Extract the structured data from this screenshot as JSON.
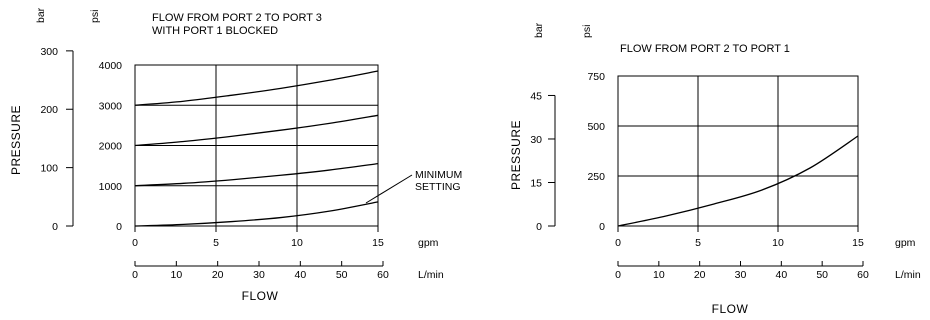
{
  "chart_data": [
    {
      "type": "line",
      "title_lines": [
        "FLOW FROM PORT 2 TO PORT 3",
        "WITH PORT 1 BLOCKED"
      ],
      "ylabel": "PRESSURE",
      "xlabel": "FLOW",
      "unit_bar": "bar",
      "unit_psi": "psi",
      "unit_gpm": "gpm",
      "unit_lmin": "L/min",
      "xlim_gpm": [
        0,
        15
      ],
      "ylim_psi": [
        0,
        4000
      ],
      "gpm_ticks": [
        "0",
        "5",
        "10",
        "15"
      ],
      "lmin_ticks": [
        "0",
        "10",
        "20",
        "30",
        "40",
        "50",
        "60"
      ],
      "psi_ticks": [
        "0",
        "1000",
        "2000",
        "3000",
        "4000"
      ],
      "bar_ticks": [
        "0",
        "100",
        "200",
        "300"
      ],
      "grid": true,
      "annotation": [
        "MINIMUM",
        "SETTING"
      ],
      "series": [
        {
          "x": [
            0,
            3,
            6,
            9,
            12,
            15
          ],
          "y": [
            3000,
            3100,
            3250,
            3420,
            3620,
            3850
          ]
        },
        {
          "x": [
            0,
            3,
            6,
            9,
            12,
            15
          ],
          "y": [
            2000,
            2100,
            2230,
            2380,
            2550,
            2750
          ]
        },
        {
          "x": [
            0,
            3,
            6,
            9,
            12,
            15
          ],
          "y": [
            1000,
            1060,
            1150,
            1260,
            1390,
            1550
          ]
        },
        {
          "x": [
            0,
            3,
            6,
            9,
            12,
            15
          ],
          "y": [
            0,
            40,
            110,
            210,
            370,
            600
          ]
        }
      ]
    },
    {
      "type": "line",
      "title_lines": [
        "FLOW FROM PORT 2 TO PORT 1"
      ],
      "ylabel": "PRESSURE",
      "xlabel": "FLOW",
      "unit_bar": "bar",
      "unit_psi": "psi",
      "unit_gpm": "gpm",
      "unit_lmin": "L/min",
      "xlim_gpm": [
        0,
        15
      ],
      "ylim_psi": [
        0,
        750
      ],
      "gpm_ticks": [
        "0",
        "5",
        "10",
        "15"
      ],
      "lmin_ticks": [
        "0",
        "10",
        "20",
        "30",
        "40",
        "50",
        "60"
      ],
      "psi_ticks": [
        "0",
        "250",
        "500",
        "750"
      ],
      "bar_ticks": [
        "0",
        "15",
        "30",
        "45"
      ],
      "grid": true,
      "series": [
        {
          "x": [
            0,
            3,
            6,
            9,
            12,
            15
          ],
          "y": [
            0,
            50,
            110,
            180,
            290,
            450
          ]
        }
      ]
    }
  ]
}
